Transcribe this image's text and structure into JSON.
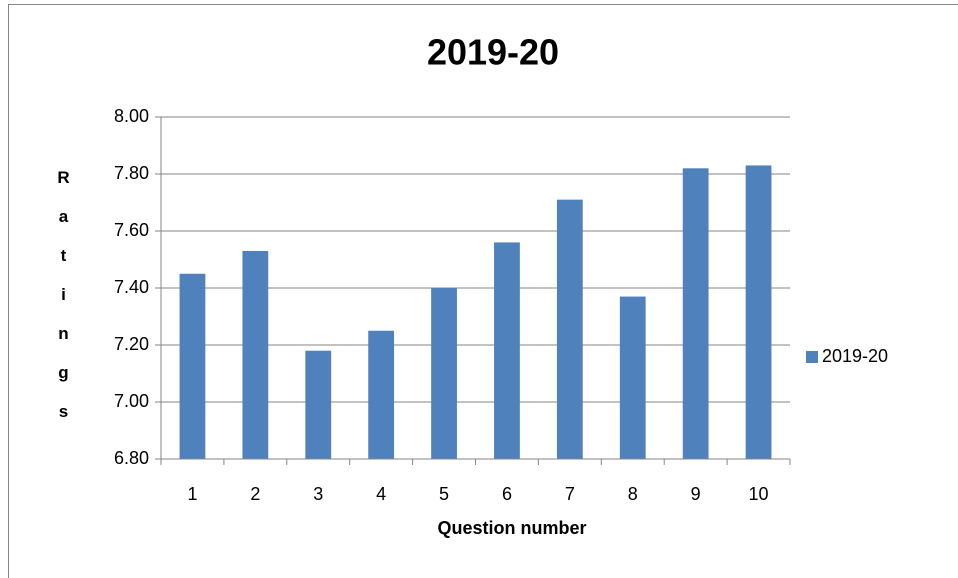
{
  "chart_data": {
    "type": "bar",
    "title": "2019-20",
    "categories": [
      "1",
      "2",
      "3",
      "4",
      "5",
      "6",
      "7",
      "8",
      "9",
      "10"
    ],
    "series": [
      {
        "name": "2019-20",
        "color": "#4f81bd",
        "values": [
          7.45,
          7.53,
          7.18,
          7.25,
          7.4,
          7.56,
          7.71,
          7.37,
          7.82,
          7.83
        ]
      }
    ],
    "ylim": [
      6.8,
      8.0
    ],
    "yticks": [
      {
        "value": 6.8,
        "label": "6.80"
      },
      {
        "value": 7.0,
        "label": "7.00"
      },
      {
        "value": 7.2,
        "label": "7.20"
      },
      {
        "value": 7.4,
        "label": "7.40"
      },
      {
        "value": 7.6,
        "label": "7.60"
      },
      {
        "value": 7.8,
        "label": "7.80"
      },
      {
        "value": 8.0,
        "label": "8.00"
      }
    ],
    "grid": true,
    "legend": "right",
    "x_label": "Question number",
    "y_label": "Ratings"
  }
}
